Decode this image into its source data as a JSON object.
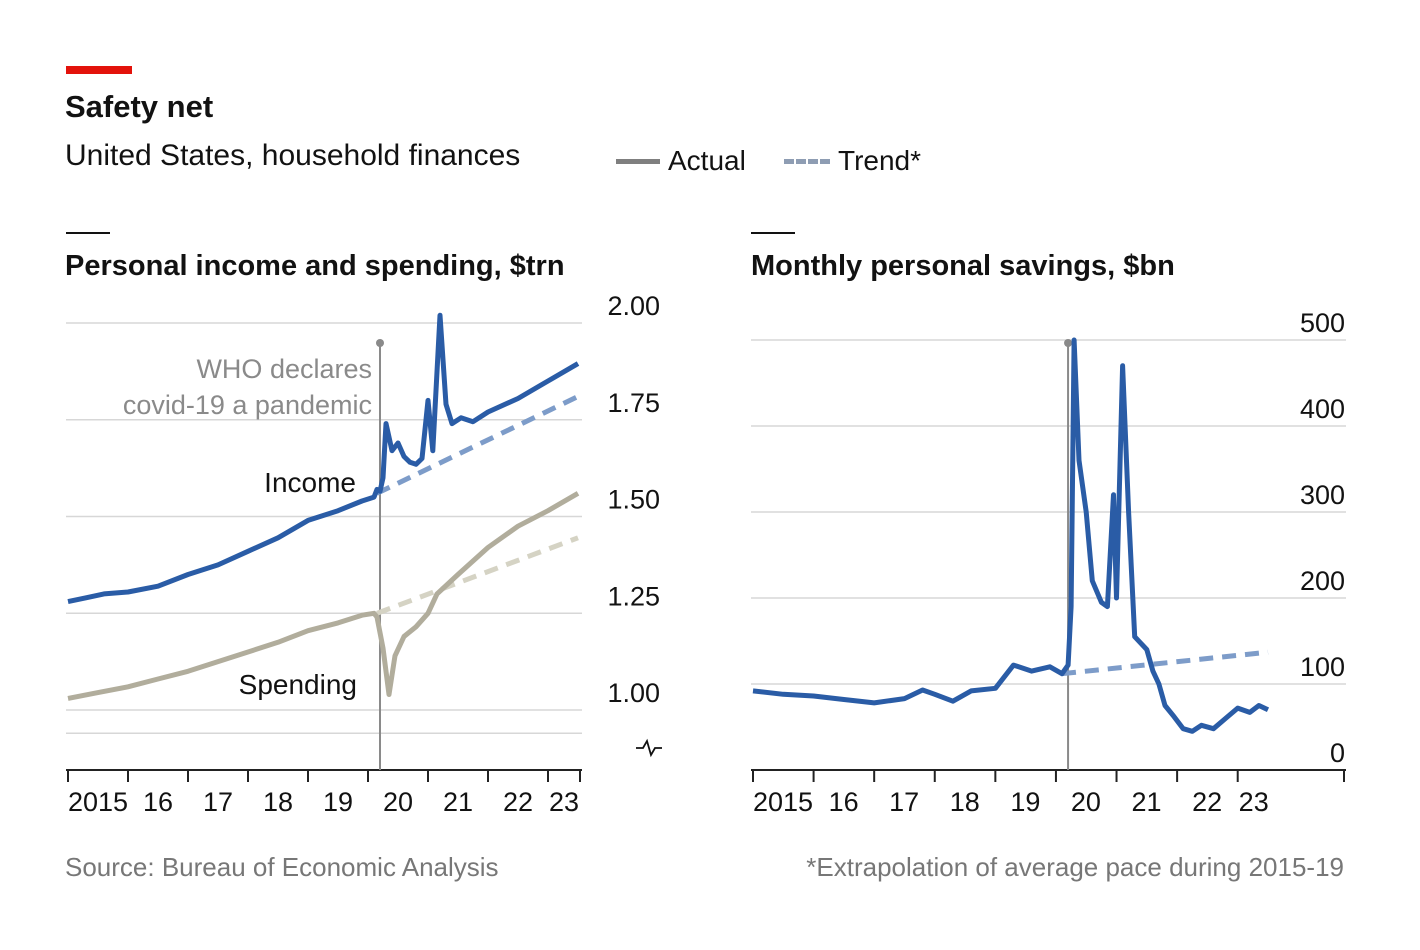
{
  "header": {
    "title": "Safety net",
    "subtitle": "United States, household finances"
  },
  "legend": {
    "actual_label": "Actual",
    "trend_label": "Trend*"
  },
  "colors": {
    "accent_red": "#e3120b",
    "income_blue": "#2a5ca6",
    "income_trend": "#7d9cc9",
    "spending": "#b1ad9c",
    "spending_trend": "#d5d3c4",
    "grid": "#d7d7d7",
    "axis": "#222222",
    "annotation_gray": "#8a8a8a"
  },
  "footer": {
    "source": "Source: Bureau of Economic Analysis",
    "note": "*Extrapolation of average pace during 2015-19"
  },
  "chart_data": [
    {
      "type": "line",
      "title": "Personal income and spending, $trn",
      "xlabel": "",
      "ylabel": "$trn",
      "xlim": [
        2015,
        2023.5
      ],
      "ylim": [
        0.9,
        2.0
      ],
      "y_ticks": [
        1.0,
        1.25,
        1.5,
        1.75,
        2.0
      ],
      "y_tick_labels": [
        "1.00",
        "1.25",
        "1.50",
        "1.75",
        "2.00"
      ],
      "x_ticks": [
        2015,
        2016,
        2017,
        2018,
        2019,
        2020,
        2021,
        2022,
        2023
      ],
      "x_tick_labels": [
        "2015",
        "16",
        "17",
        "18",
        "19",
        "20",
        "21",
        "22",
        "23"
      ],
      "grid": true,
      "axis_break": true,
      "annotation": {
        "x": 2020.2,
        "lines": [
          "WHO declares",
          "covid-19 a pandemic"
        ]
      },
      "series": [
        {
          "name": "Income",
          "style": "actual",
          "points": [
            [
              2015.0,
              1.28
            ],
            [
              2015.3,
              1.29
            ],
            [
              2015.6,
              1.3
            ],
            [
              2016.0,
              1.305
            ],
            [
              2016.5,
              1.32
            ],
            [
              2017.0,
              1.35
            ],
            [
              2017.5,
              1.375
            ],
            [
              2018.0,
              1.41
            ],
            [
              2018.5,
              1.445
            ],
            [
              2019.0,
              1.49
            ],
            [
              2019.5,
              1.515
            ],
            [
              2019.9,
              1.54
            ],
            [
              2020.1,
              1.55
            ],
            [
              2020.15,
              1.57
            ],
            [
              2020.2,
              1.565
            ],
            [
              2020.25,
              1.6
            ],
            [
              2020.3,
              1.74
            ],
            [
              2020.4,
              1.67
            ],
            [
              2020.5,
              1.69
            ],
            [
              2020.6,
              1.655
            ],
            [
              2020.7,
              1.64
            ],
            [
              2020.8,
              1.635
            ],
            [
              2020.9,
              1.65
            ],
            [
              2021.0,
              1.8
            ],
            [
              2021.08,
              1.67
            ],
            [
              2021.2,
              2.02
            ],
            [
              2021.3,
              1.79
            ],
            [
              2021.4,
              1.74
            ],
            [
              2021.55,
              1.755
            ],
            [
              2021.75,
              1.745
            ],
            [
              2022.0,
              1.77
            ],
            [
              2022.5,
              1.805
            ],
            [
              2023.0,
              1.85
            ],
            [
              2023.5,
              1.895
            ]
          ]
        },
        {
          "name": "Income trend",
          "style": "trend",
          "points": [
            [
              2020.15,
              1.56
            ],
            [
              2023.5,
              1.81
            ]
          ]
        },
        {
          "name": "Spending",
          "style": "actual",
          "points": [
            [
              2015.0,
              1.03
            ],
            [
              2015.5,
              1.045
            ],
            [
              2016.0,
              1.06
            ],
            [
              2016.5,
              1.08
            ],
            [
              2017.0,
              1.1
            ],
            [
              2017.5,
              1.125
            ],
            [
              2018.0,
              1.15
            ],
            [
              2018.5,
              1.175
            ],
            [
              2019.0,
              1.205
            ],
            [
              2019.5,
              1.225
            ],
            [
              2019.9,
              1.245
            ],
            [
              2020.1,
              1.25
            ],
            [
              2020.15,
              1.24
            ],
            [
              2020.25,
              1.16
            ],
            [
              2020.35,
              1.04
            ],
            [
              2020.45,
              1.14
            ],
            [
              2020.6,
              1.19
            ],
            [
              2020.8,
              1.215
            ],
            [
              2021.0,
              1.25
            ],
            [
              2021.15,
              1.3
            ],
            [
              2021.5,
              1.35
            ],
            [
              2022.0,
              1.42
            ],
            [
              2022.5,
              1.475
            ],
            [
              2023.0,
              1.515
            ],
            [
              2023.5,
              1.56
            ]
          ]
        },
        {
          "name": "Spending trend",
          "style": "trend",
          "points": [
            [
              2020.15,
              1.25
            ],
            [
              2023.5,
              1.445
            ]
          ]
        }
      ],
      "series_labels": [
        {
          "series": "Income",
          "text": "Income"
        },
        {
          "series": "Spending",
          "text": "Spending"
        }
      ]
    },
    {
      "type": "line",
      "title": "Monthly personal savings, $bn",
      "xlabel": "",
      "ylabel": "$bn",
      "xlim": [
        2015,
        2023.5
      ],
      "ylim": [
        0,
        500
      ],
      "y_ticks": [
        0,
        100,
        200,
        300,
        400,
        500
      ],
      "y_tick_labels": [
        "0",
        "100",
        "200",
        "300",
        "400",
        "500"
      ],
      "x_ticks": [
        2015,
        2016,
        2017,
        2018,
        2019,
        2020,
        2021,
        2022,
        2023
      ],
      "x_tick_labels": [
        "2015",
        "16",
        "17",
        "18",
        "19",
        "20",
        "21",
        "22",
        "23"
      ],
      "grid": true,
      "annotation": {
        "x": 2020.2,
        "lines": []
      },
      "series": [
        {
          "name": "Savings",
          "style": "actual",
          "points": [
            [
              2015.0,
              92
            ],
            [
              2015.5,
              88
            ],
            [
              2016.0,
              86
            ],
            [
              2016.5,
              82
            ],
            [
              2017.0,
              78
            ],
            [
              2017.5,
              83
            ],
            [
              2017.8,
              93
            ],
            [
              2018.0,
              88
            ],
            [
              2018.3,
              80
            ],
            [
              2018.6,
              92
            ],
            [
              2019.0,
              95
            ],
            [
              2019.3,
              122
            ],
            [
              2019.6,
              115
            ],
            [
              2019.9,
              120
            ],
            [
              2020.1,
              112
            ],
            [
              2020.2,
              122
            ],
            [
              2020.25,
              190
            ],
            [
              2020.3,
              500
            ],
            [
              2020.38,
              360
            ],
            [
              2020.5,
              300
            ],
            [
              2020.6,
              220
            ],
            [
              2020.75,
              195
            ],
            [
              2020.85,
              190
            ],
            [
              2020.95,
              320
            ],
            [
              2021.0,
              200
            ],
            [
              2021.1,
              470
            ],
            [
              2021.2,
              300
            ],
            [
              2021.3,
              155
            ],
            [
              2021.5,
              140
            ],
            [
              2021.6,
              115
            ],
            [
              2021.7,
              100
            ],
            [
              2021.8,
              75
            ],
            [
              2021.95,
              62
            ],
            [
              2022.1,
              48
            ],
            [
              2022.25,
              45
            ],
            [
              2022.4,
              52
            ],
            [
              2022.6,
              48
            ],
            [
              2022.8,
              60
            ],
            [
              2023.0,
              72
            ],
            [
              2023.2,
              67
            ],
            [
              2023.35,
              75
            ],
            [
              2023.5,
              70
            ]
          ]
        },
        {
          "name": "Savings trend",
          "style": "trend",
          "points": [
            [
              2020.1,
              112
            ],
            [
              2023.5,
              137
            ]
          ]
        }
      ]
    }
  ]
}
